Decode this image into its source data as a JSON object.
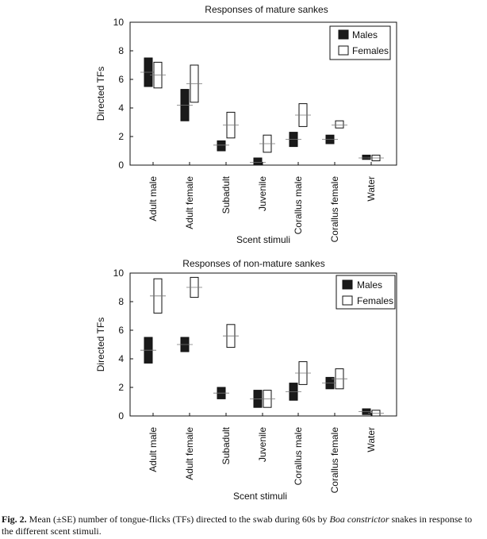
{
  "charts": [
    {
      "title": "Responses of mature sankes",
      "ylabel": "Directed TFs",
      "xlabel": "Scent stimuli",
      "legend": [
        "Males",
        "Females"
      ]
    },
    {
      "title": "Responses of non-mature sankes",
      "ylabel": "Directed TFs",
      "xlabel": "Scent stimuli",
      "legend": [
        "Males",
        "Females"
      ]
    }
  ],
  "caption": {
    "fig_label": "Fig. 2.",
    "text_before": " Mean (±SE) number of tongue-flicks (TFs) directed to the swab during 60s by ",
    "species": "Boa constrictor",
    "text_after": " snakes in response to the different scent stimuli."
  },
  "chart_data": [
    {
      "type": "bar",
      "title": "Responses of mature sankes",
      "xlabel": "Scent stimuli",
      "ylabel": "Directed TFs",
      "ylim": [
        0,
        10
      ],
      "yticks": [
        0,
        2,
        4,
        6,
        8,
        10
      ],
      "categories": [
        "Adult male",
        "Adult female",
        "Subadult",
        "Juvenile",
        "Corallus male",
        "Corallus female",
        "Water"
      ],
      "legend_position": "top-right",
      "series": [
        {
          "name": "Males",
          "color": "#1a1a1a",
          "mean": [
            6.5,
            4.2,
            1.4,
            0.2,
            1.8,
            1.8,
            0.5
          ],
          "se_low": [
            5.5,
            3.1,
            1.0,
            0.0,
            1.3,
            1.5,
            0.4
          ],
          "se_high": [
            7.5,
            5.3,
            1.7,
            0.5,
            2.3,
            2.1,
            0.7
          ]
        },
        {
          "name": "Females",
          "color": "#ffffff",
          "mean": [
            6.3,
            5.7,
            2.8,
            1.5,
            3.5,
            2.8,
            0.5
          ],
          "se_low": [
            5.4,
            4.4,
            1.9,
            0.9,
            2.7,
            2.6,
            0.3
          ],
          "se_high": [
            7.2,
            7.0,
            3.7,
            2.1,
            4.3,
            3.1,
            0.7
          ]
        }
      ]
    },
    {
      "type": "bar",
      "title": "Responses of non-mature sankes",
      "xlabel": "Scent stimuli",
      "ylabel": "Directed TFs",
      "ylim": [
        0,
        10
      ],
      "yticks": [
        0,
        2,
        4,
        6,
        8,
        10
      ],
      "categories": [
        "Adult male",
        "Adult female",
        "Subadult",
        "Juvenile",
        "Corallus male",
        "Corallus female",
        "Water"
      ],
      "legend_position": "top-right",
      "series": [
        {
          "name": "Males",
          "color": "#1a1a1a",
          "mean": [
            4.6,
            5.0,
            1.6,
            1.2,
            1.7,
            2.3,
            0.3
          ],
          "se_low": [
            3.7,
            4.5,
            1.2,
            0.6,
            1.1,
            1.9,
            0.1
          ],
          "se_high": [
            5.5,
            5.5,
            2.0,
            1.8,
            2.3,
            2.7,
            0.5
          ]
        },
        {
          "name": "Females",
          "color": "#ffffff",
          "mean": [
            8.4,
            9.0,
            5.6,
            1.2,
            3.0,
            2.6,
            0.2
          ],
          "se_low": [
            7.2,
            8.3,
            4.8,
            0.6,
            2.2,
            1.9,
            0.0
          ],
          "se_high": [
            9.6,
            9.7,
            6.4,
            1.8,
            3.8,
            3.3,
            0.4
          ]
        }
      ]
    }
  ]
}
